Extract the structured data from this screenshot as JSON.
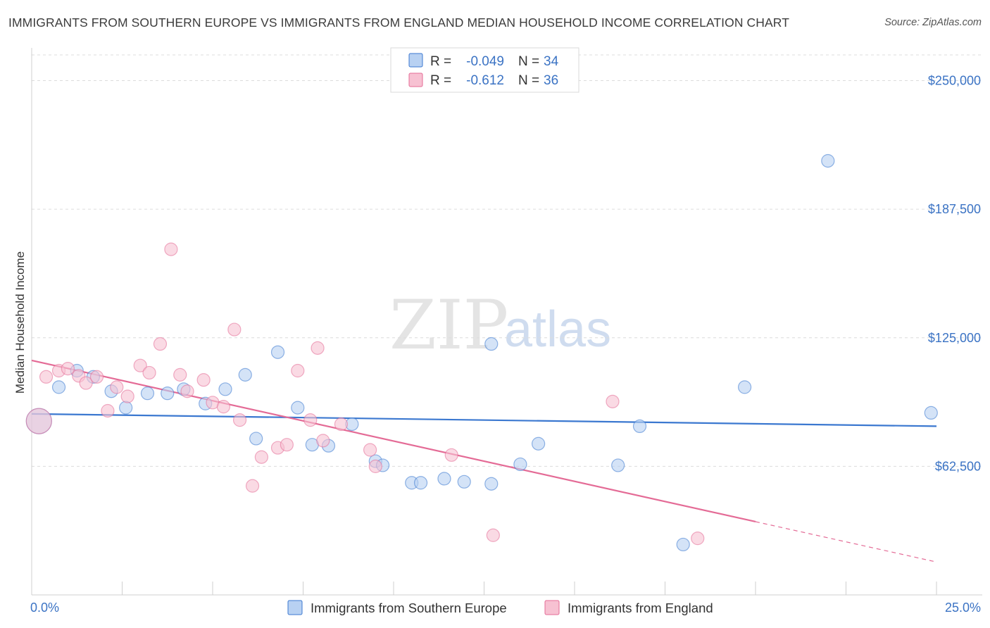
{
  "title": "IMMIGRANTS FROM SOUTHERN EUROPE VS IMMIGRANTS FROM ENGLAND MEDIAN HOUSEHOLD INCOME CORRELATION CHART",
  "source": "Source: ZipAtlas.com",
  "watermark": {
    "zip": "ZIP",
    "atlas": "atlas"
  },
  "colors": {
    "blue": "#3b78d0",
    "blue_fill": "#b8d1f2",
    "pink": "#e46b96",
    "pink_fill": "#f7c1d2",
    "tick_text": "#3b73c4",
    "grid": "#dcdcdc"
  },
  "legend": {
    "rows": [
      {
        "r_label": "R = ",
        "r_value": "-0.049",
        "n_label": "N = ",
        "n_value": "34",
        "color": "blue"
      },
      {
        "r_label": "R = ",
        "r_value": "-0.612",
        "n_label": "N = ",
        "n_value": "36",
        "color": "pink"
      }
    ]
  },
  "bottom_legend": [
    "Immigrants from Southern Europe",
    "Immigrants from England"
  ],
  "chart_data": {
    "type": "scatter",
    "xlabel": "",
    "ylabel": "Median Household Income",
    "xlim": [
      0,
      25
    ],
    "ylim": [
      0,
      262500
    ],
    "x_tick_labels": [
      "0.0%",
      "25.0%"
    ],
    "y_ticks": [
      62500,
      125000,
      187500,
      250000
    ],
    "y_tick_labels": [
      "$62,500",
      "$125,000",
      "$187,500",
      "$250,000"
    ],
    "grid": true,
    "legend_position": "top-center",
    "series": [
      {
        "name": "Immigrants from Southern Europe",
        "color": "blue",
        "trend": {
          "x": [
            0,
            25
          ],
          "y": [
            88000,
            82000
          ]
        },
        "points": [
          {
            "x": 0.2,
            "y": 84500,
            "big": true
          },
          {
            "x": 0.75,
            "y": 101000
          },
          {
            "x": 1.25,
            "y": 109000
          },
          {
            "x": 1.7,
            "y": 106000
          },
          {
            "x": 2.2,
            "y": 99000
          },
          {
            "x": 2.6,
            "y": 91000
          },
          {
            "x": 3.2,
            "y": 98000
          },
          {
            "x": 3.75,
            "y": 98000
          },
          {
            "x": 4.2,
            "y": 100000
          },
          {
            "x": 4.8,
            "y": 93000
          },
          {
            "x": 5.35,
            "y": 100000
          },
          {
            "x": 5.9,
            "y": 107000
          },
          {
            "x": 6.2,
            "y": 76000
          },
          {
            "x": 6.8,
            "y": 118000
          },
          {
            "x": 7.35,
            "y": 91000
          },
          {
            "x": 7.75,
            "y": 73000
          },
          {
            "x": 8.2,
            "y": 72500
          },
          {
            "x": 8.85,
            "y": 83000
          },
          {
            "x": 9.5,
            "y": 65000
          },
          {
            "x": 9.7,
            "y": 63000
          },
          {
            "x": 10.5,
            "y": 54500
          },
          {
            "x": 10.75,
            "y": 54500
          },
          {
            "x": 11.4,
            "y": 56500
          },
          {
            "x": 11.95,
            "y": 55000
          },
          {
            "x": 12.7,
            "y": 122000
          },
          {
            "x": 12.7,
            "y": 54000
          },
          {
            "x": 13.5,
            "y": 63500
          },
          {
            "x": 14.0,
            "y": 73500
          },
          {
            "x": 16.2,
            "y": 63000
          },
          {
            "x": 16.8,
            "y": 82000
          },
          {
            "x": 18.0,
            "y": 24500
          },
          {
            "x": 19.7,
            "y": 101000
          },
          {
            "x": 22.0,
            "y": 211000
          },
          {
            "x": 24.85,
            "y": 88500
          }
        ]
      },
      {
        "name": "Immigrants from England",
        "color": "pink",
        "trend": {
          "x": [
            0,
            25
          ],
          "y": [
            114000,
            16000
          ],
          "solid_until": 20
        },
        "points": [
          {
            "x": 0.2,
            "y": 84500,
            "big": true
          },
          {
            "x": 0.4,
            "y": 106000
          },
          {
            "x": 0.75,
            "y": 109000
          },
          {
            "x": 1.0,
            "y": 110000
          },
          {
            "x": 1.3,
            "y": 106500
          },
          {
            "x": 1.5,
            "y": 103000
          },
          {
            "x": 1.8,
            "y": 106000
          },
          {
            "x": 2.1,
            "y": 89500
          },
          {
            "x": 2.35,
            "y": 101000
          },
          {
            "x": 2.65,
            "y": 96500
          },
          {
            "x": 3.0,
            "y": 111500
          },
          {
            "x": 3.25,
            "y": 108000
          },
          {
            "x": 3.55,
            "y": 122000
          },
          {
            "x": 3.85,
            "y": 168000
          },
          {
            "x": 4.1,
            "y": 107000
          },
          {
            "x": 4.3,
            "y": 99000
          },
          {
            "x": 4.75,
            "y": 104500
          },
          {
            "x": 5.0,
            "y": 93500
          },
          {
            "x": 5.3,
            "y": 91500
          },
          {
            "x": 5.6,
            "y": 129000
          },
          {
            "x": 5.75,
            "y": 85000
          },
          {
            "x": 6.1,
            "y": 53000
          },
          {
            "x": 6.35,
            "y": 67000
          },
          {
            "x": 6.8,
            "y": 71500
          },
          {
            "x": 7.05,
            "y": 73000
          },
          {
            "x": 7.35,
            "y": 109000
          },
          {
            "x": 7.7,
            "y": 85000
          },
          {
            "x": 7.9,
            "y": 120000
          },
          {
            "x": 8.05,
            "y": 75000
          },
          {
            "x": 8.55,
            "y": 83000
          },
          {
            "x": 9.35,
            "y": 70500
          },
          {
            "x": 9.5,
            "y": 62500
          },
          {
            "x": 11.6,
            "y": 68000
          },
          {
            "x": 12.75,
            "y": 29000
          },
          {
            "x": 16.05,
            "y": 94000
          },
          {
            "x": 18.4,
            "y": 27500
          }
        ]
      }
    ]
  }
}
